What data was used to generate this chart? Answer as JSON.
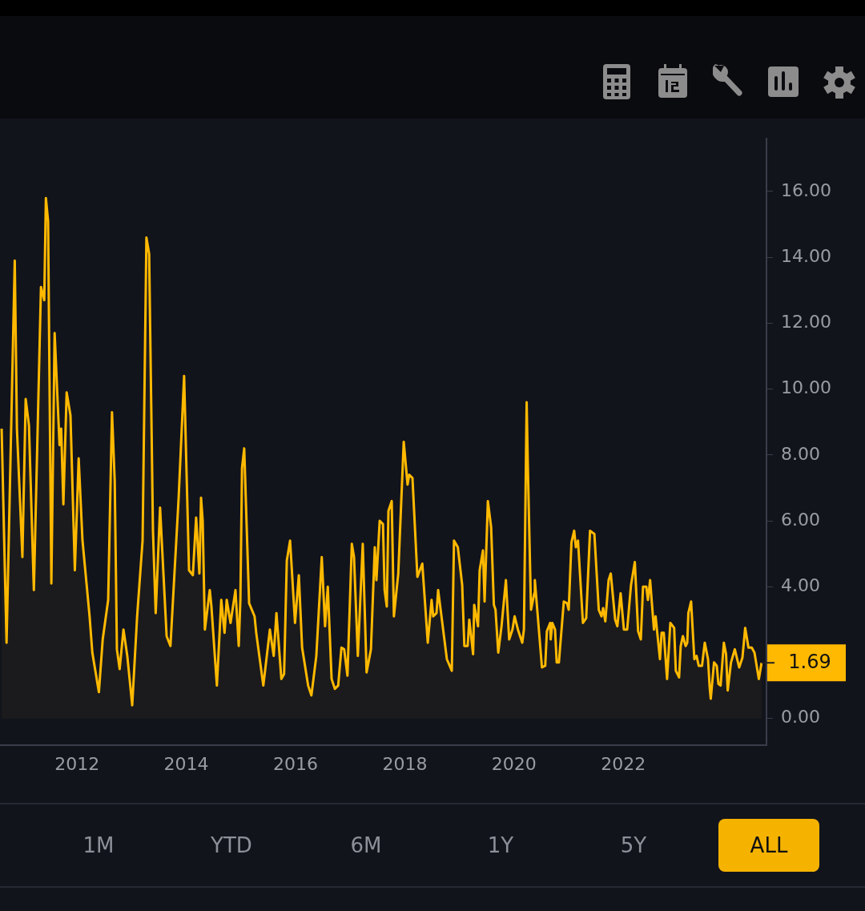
{
  "chart_data": {
    "type": "area",
    "x": [
      2010.62,
      2010.71,
      2010.86,
      2010.9,
      2011.0,
      2011.06,
      2011.12,
      2011.21,
      2011.34,
      2011.4,
      2011.43,
      2011.47,
      2011.53,
      2011.59,
      2011.68,
      2011.71,
      2011.75,
      2011.81,
      2011.88,
      2011.96,
      2012.03,
      2012.1,
      2012.23,
      2012.28,
      2012.4,
      2012.47,
      2012.57,
      2012.64,
      2012.69,
      2012.73,
      2012.78,
      2012.85,
      2012.92,
      2013.01,
      2013.1,
      2013.2,
      2013.27,
      2013.32,
      2013.39,
      2013.44,
      2013.52,
      2013.64,
      2013.71,
      2013.86,
      2013.96,
      2014.05,
      2014.12,
      2014.18,
      2014.24,
      2014.27,
      2014.3,
      2014.34,
      2014.43,
      2014.46,
      2014.56,
      2014.64,
      2014.7,
      2014.74,
      2014.81,
      2014.9,
      2014.96,
      2014.99,
      2015.02,
      2015.06,
      2015.15,
      2015.25,
      2015.28,
      2015.41,
      2015.53,
      2015.6,
      2015.65,
      2015.74,
      2015.79,
      2015.84,
      2015.9,
      2015.99,
      2016.06,
      2016.12,
      2016.23,
      2016.29,
      2016.38,
      2016.48,
      2016.54,
      2016.59,
      2016.66,
      2016.72,
      2016.78,
      2016.84,
      2016.89,
      2016.95,
      2017.03,
      2017.07,
      2017.14,
      2017.23,
      2017.3,
      2017.38,
      2017.45,
      2017.48,
      2017.54,
      2017.6,
      2017.63,
      2017.67,
      2017.7,
      2017.76,
      2017.8,
      2017.88,
      2017.98,
      2018.05,
      2018.08,
      2018.14,
      2018.23,
      2018.32,
      2018.42,
      2018.49,
      2018.52,
      2018.58,
      2018.61,
      2018.77,
      2018.86,
      2018.9,
      2018.97,
      2019.05,
      2019.09,
      2019.15,
      2019.18,
      2019.25,
      2019.27,
      2019.34,
      2019.37,
      2019.43,
      2019.46,
      2019.52,
      2019.58,
      2019.63,
      2019.66,
      2019.71,
      2019.77,
      2019.85,
      2019.91,
      2019.97,
      2020.01,
      2020.07,
      2020.15,
      2020.18,
      2020.23,
      2020.25,
      2020.31,
      2020.37,
      2020.38,
      2020.51,
      2020.57,
      2020.6,
      2020.66,
      2020.67,
      2020.7,
      2020.75,
      2020.78,
      2020.82,
      2020.91,
      2020.97,
      2021.0,
      2021.05,
      2021.1,
      2021.13,
      2021.17,
      2021.26,
      2021.32,
      2021.39,
      2021.47,
      2021.55,
      2021.6,
      2021.63,
      2021.67,
      2021.73,
      2021.77,
      2021.85,
      2021.89,
      2021.95,
      2022.01,
      2022.07,
      2022.14,
      2022.21,
      2022.27,
      2022.32,
      2022.36,
      2022.42,
      2022.45,
      2022.49,
      2022.56,
      2022.59,
      2022.67,
      2022.7,
      2022.74,
      2022.8,
      2022.86,
      2022.93,
      2022.96,
      2023.02,
      2023.05,
      2023.09,
      2023.14,
      2023.17,
      2023.19,
      2023.24,
      2023.3,
      2023.34,
      2023.38,
      2023.44,
      2023.49,
      2023.55,
      2023.58,
      2023.6,
      2023.66,
      2023.71,
      2023.74,
      2023.78,
      2023.84,
      2023.88,
      2023.91,
      2023.97,
      2024.04,
      2024.12,
      2024.18,
      2024.23,
      2024.29,
      2024.35,
      2024.4,
      2024.44,
      2024.48,
      2024.53
    ],
    "series": [
      {
        "color": "#ffb900",
        "values": [
          8.8,
          2.3,
          13.9,
          8.8,
          4.9,
          9.7,
          8.9,
          3.9,
          13.1,
          12.7,
          15.8,
          15.1,
          4.1,
          11.7,
          8.3,
          8.8,
          6.5,
          9.9,
          9.2,
          4.5,
          7.9,
          5.4,
          3.1,
          2.0,
          0.8,
          2.4,
          3.6,
          9.3,
          7.2,
          2.1,
          1.5,
          2.7,
          1.9,
          0.4,
          3.1,
          5.4,
          14.6,
          14.1,
          5.7,
          3.2,
          6.4,
          2.5,
          2.2,
          6.7,
          10.4,
          4.5,
          4.35,
          6.1,
          4.4,
          6.7,
          6.0,
          2.7,
          3.9,
          3.4,
          1.0,
          3.6,
          2.6,
          3.6,
          2.9,
          3.9,
          2.2,
          3.6,
          7.6,
          8.2,
          3.5,
          3.1,
          2.6,
          1.0,
          2.7,
          1.9,
          3.2,
          1.2,
          1.35,
          4.8,
          5.4,
          2.9,
          4.35,
          2.15,
          1.0,
          0.7,
          1.9,
          4.9,
          2.8,
          4.0,
          1.2,
          0.9,
          1.0,
          2.15,
          2.1,
          1.3,
          5.3,
          4.9,
          1.9,
          5.3,
          1.4,
          2.1,
          5.2,
          4.2,
          6.0,
          5.9,
          3.9,
          3.4,
          6.3,
          6.6,
          3.1,
          4.4,
          8.4,
          7.1,
          7.4,
          7.3,
          4.3,
          4.7,
          2.3,
          3.6,
          3.1,
          3.2,
          3.9,
          1.8,
          1.45,
          5.4,
          5.2,
          4.05,
          2.2,
          2.2,
          3.0,
          1.95,
          3.45,
          2.8,
          4.5,
          5.1,
          3.55,
          6.6,
          5.8,
          3.45,
          3.3,
          2.0,
          2.8,
          4.2,
          2.4,
          2.7,
          3.1,
          2.7,
          2.3,
          2.7,
          9.6,
          7.8,
          3.3,
          3.8,
          4.2,
          1.55,
          1.6,
          2.65,
          2.9,
          2.4,
          2.9,
          2.7,
          1.7,
          1.7,
          3.55,
          3.5,
          3.3,
          5.35,
          5.7,
          5.2,
          5.4,
          2.9,
          3.05,
          5.7,
          5.6,
          3.3,
          3.1,
          3.35,
          2.95,
          4.2,
          4.4,
          3.0,
          2.8,
          3.8,
          2.7,
          2.7,
          4.05,
          4.75,
          2.65,
          2.4,
          4.0,
          4.0,
          3.6,
          4.2,
          2.7,
          3.1,
          1.8,
          2.6,
          2.6,
          1.2,
          2.9,
          2.75,
          1.45,
          1.25,
          2.2,
          2.5,
          2.2,
          2.3,
          3.2,
          3.55,
          1.8,
          1.9,
          1.6,
          1.6,
          2.3,
          1.8,
          0.95,
          0.6,
          1.7,
          1.6,
          1.05,
          1.0,
          2.3,
          1.95,
          0.85,
          1.7,
          2.1,
          1.55,
          1.85,
          2.75,
          2.15,
          2.15,
          2.0,
          1.6,
          1.2,
          1.69
        ]
      }
    ],
    "xlim": [
      2010.59,
      2024.62
    ],
    "xticks": [
      2012,
      2014,
      2016,
      2018,
      2020,
      2022
    ],
    "ylim": [
      -0.8,
      17.6
    ],
    "yticks": [
      {
        "value": 0,
        "label": "0.00"
      },
      {
        "value": 2,
        "label": null
      },
      {
        "value": 4,
        "label": "4.00"
      },
      {
        "value": 6,
        "label": "6.00"
      },
      {
        "value": 8,
        "label": "8.00"
      },
      {
        "value": 10,
        "label": "10.00"
      },
      {
        "value": 12,
        "label": "12.00"
      },
      {
        "value": 14,
        "label": "14.00"
      },
      {
        "value": 16,
        "label": "16.00"
      }
    ],
    "grid": false,
    "legend": false,
    "marker": "none",
    "line_style": "solid",
    "annotations": [
      {
        "text": "1.69",
        "x": 2024.53,
        "y": 1.69
      },
      "1M",
      "YTD",
      "6M",
      "1Y",
      "5Y",
      "ALL"
    ]
  }
}
